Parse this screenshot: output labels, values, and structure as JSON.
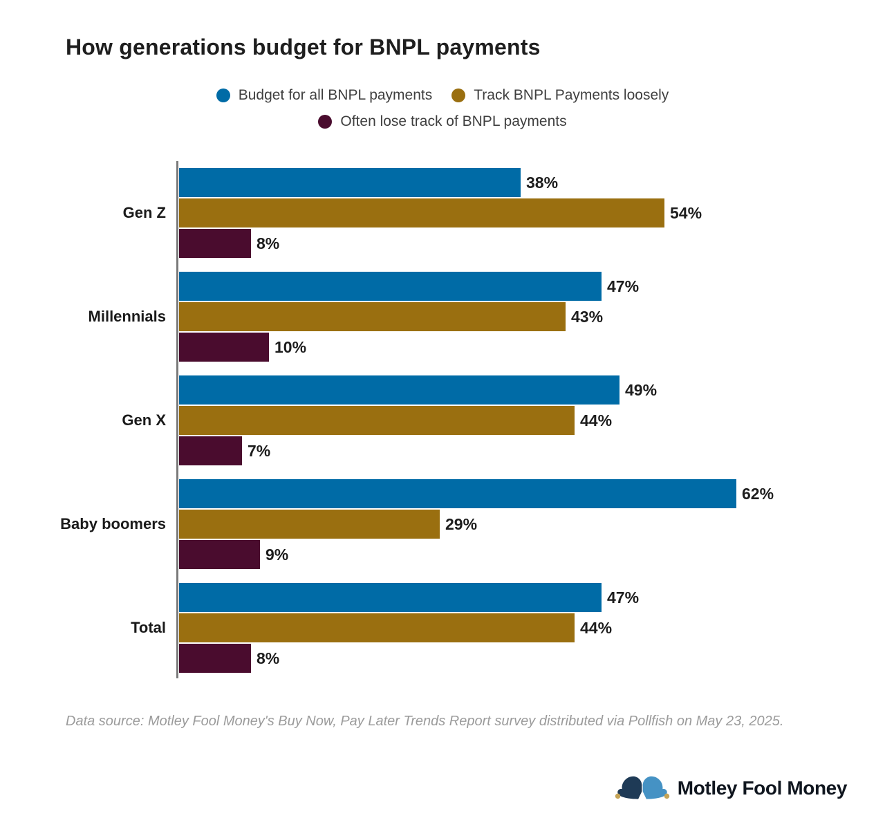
{
  "title": "How generations budget for BNPL payments",
  "source_note": "Data source: Motley Fool Money's Buy Now, Pay Later Trends Report survey distributed via Pollfish on May 23, 2025.",
  "brand": {
    "name": "Motley Fool Money",
    "hat_left_color": "#1e3a56",
    "hat_right_color": "#4592c4",
    "bell_color": "#c5a457"
  },
  "colors": {
    "title_text": "#1e1e1e",
    "legend_text": "#3f3f3f",
    "value_text": "#1d1d1d",
    "axis": "#7a7a7a",
    "source_text": "#9b9b9b",
    "background": "#ffffff"
  },
  "chart_data": {
    "type": "bar",
    "orientation": "horizontal",
    "title": "How generations budget for BNPL payments",
    "categories": [
      "Gen Z",
      "Millennials",
      "Gen X",
      "Baby boomers",
      "Total"
    ],
    "series": [
      {
        "name": "Budget for all BNPL payments",
        "color": "#006BA6",
        "values": [
          38,
          47,
          49,
          62,
          47
        ]
      },
      {
        "name": "Track BNPL Payments loosely",
        "color": "#9A6F10",
        "values": [
          54,
          43,
          44,
          29,
          44
        ]
      },
      {
        "name": "Often lose track of BNPL payments",
        "color": "#4A0C2E",
        "values": [
          8,
          10,
          7,
          9,
          8
        ]
      }
    ],
    "value_suffix": "%",
    "xlim": [
      0,
      70
    ],
    "grid": false,
    "legend_position": "top",
    "value_labels": "outside-end"
  }
}
